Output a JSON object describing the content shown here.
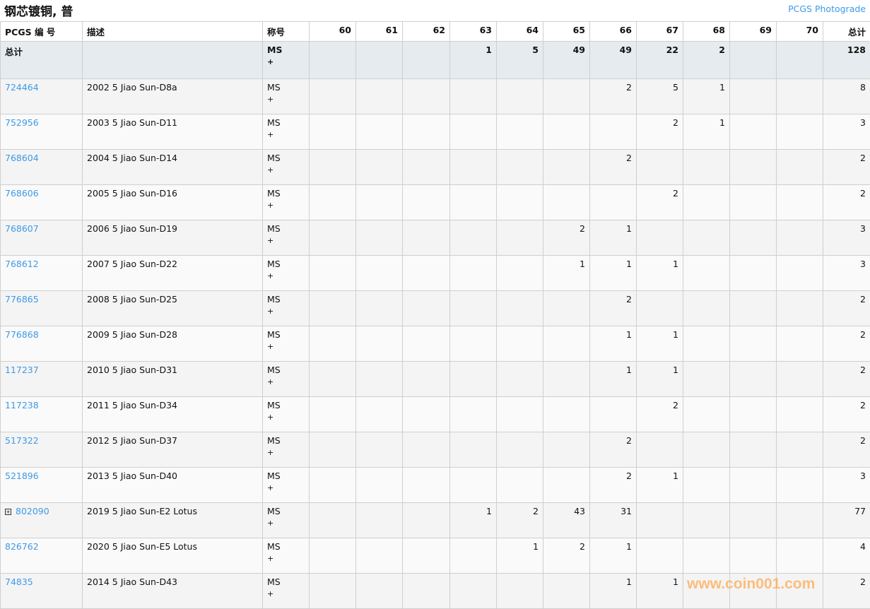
{
  "title": "钢芯镀铜, 普",
  "photograde_link": "PCGS Photograde",
  "headers": {
    "pcgs": "PCGS 编 号",
    "desc": "描述",
    "designation": "称号",
    "grades": [
      "60",
      "61",
      "62",
      "63",
      "64",
      "65",
      "66",
      "67",
      "68",
      "69",
      "70"
    ],
    "total": "总计"
  },
  "totals": {
    "label": "总计",
    "designation": "MS",
    "plus": "+",
    "counts": [
      "",
      "",
      "",
      "1",
      "5",
      "49",
      "49",
      "22",
      "2",
      "",
      ""
    ],
    "total": "128"
  },
  "rows": [
    {
      "pcgs": "724464",
      "desc": "2002 5 Jiao Sun-D8a",
      "designation": "MS",
      "plus": "+",
      "counts": [
        "",
        "",
        "",
        "",
        "",
        "",
        "2",
        "5",
        "1",
        "",
        ""
      ],
      "total": "8"
    },
    {
      "pcgs": "752956",
      "desc": "2003 5 Jiao Sun-D11",
      "designation": "MS",
      "plus": "+",
      "counts": [
        "",
        "",
        "",
        "",
        "",
        "",
        "",
        "2",
        "1",
        "",
        ""
      ],
      "total": "3"
    },
    {
      "pcgs": "768604",
      "desc": "2004 5 Jiao Sun-D14",
      "designation": "MS",
      "plus": "+",
      "counts": [
        "",
        "",
        "",
        "",
        "",
        "",
        "2",
        "",
        "",
        "",
        ""
      ],
      "total": "2"
    },
    {
      "pcgs": "768606",
      "desc": "2005 5 Jiao Sun-D16",
      "designation": "MS",
      "plus": "+",
      "counts": [
        "",
        "",
        "",
        "",
        "",
        "",
        "",
        "2",
        "",
        "",
        ""
      ],
      "total": "2"
    },
    {
      "pcgs": "768607",
      "desc": "2006 5 Jiao Sun-D19",
      "designation": "MS",
      "plus": "+",
      "counts": [
        "",
        "",
        "",
        "",
        "",
        "2",
        "1",
        "",
        "",
        "",
        ""
      ],
      "total": "3"
    },
    {
      "pcgs": "768612",
      "desc": "2007 5 Jiao Sun-D22",
      "designation": "MS",
      "plus": "+",
      "counts": [
        "",
        "",
        "",
        "",
        "",
        "1",
        "1",
        "1",
        "",
        "",
        ""
      ],
      "total": "3"
    },
    {
      "pcgs": "776865",
      "desc": "2008 5 Jiao Sun-D25",
      "designation": "MS",
      "plus": "+",
      "counts": [
        "",
        "",
        "",
        "",
        "",
        "",
        "2",
        "",
        "",
        "",
        ""
      ],
      "total": "2"
    },
    {
      "pcgs": "776868",
      "desc": "2009 5 Jiao Sun-D28",
      "designation": "MS",
      "plus": "+",
      "counts": [
        "",
        "",
        "",
        "",
        "",
        "",
        "1",
        "1",
        "",
        "",
        ""
      ],
      "total": "2"
    },
    {
      "pcgs": "117237",
      "desc": "2010 5 Jiao Sun-D31",
      "designation": "MS",
      "plus": "+",
      "counts": [
        "",
        "",
        "",
        "",
        "",
        "",
        "1",
        "1",
        "",
        "",
        ""
      ],
      "total": "2"
    },
    {
      "pcgs": "117238",
      "desc": "2011 5 Jiao Sun-D34",
      "designation": "MS",
      "plus": "+",
      "counts": [
        "",
        "",
        "",
        "",
        "",
        "",
        "",
        "2",
        "",
        "",
        ""
      ],
      "total": "2"
    },
    {
      "pcgs": "517322",
      "desc": "2012 5 Jiao Sun-D37",
      "designation": "MS",
      "plus": "+",
      "counts": [
        "",
        "",
        "",
        "",
        "",
        "",
        "2",
        "",
        "",
        "",
        ""
      ],
      "total": "2"
    },
    {
      "pcgs": "521896",
      "desc": "2013 5 Jiao Sun-D40",
      "designation": "MS",
      "plus": "+",
      "counts": [
        "",
        "",
        "",
        "",
        "",
        "",
        "2",
        "1",
        "",
        "",
        ""
      ],
      "total": "3"
    },
    {
      "pcgs": "802090",
      "expandable": true,
      "desc": "2019 5 Jiao Sun-E2 Lotus",
      "designation": "MS",
      "plus": "+",
      "counts": [
        "",
        "",
        "",
        "1",
        "2",
        "43",
        "31",
        "",
        "",
        "",
        ""
      ],
      "total": "77"
    },
    {
      "pcgs": "826762",
      "desc": "2020 5 Jiao Sun-E5 Lotus",
      "designation": "MS",
      "plus": "+",
      "counts": [
        "",
        "",
        "",
        "",
        "1",
        "2",
        "1",
        "",
        "",
        "",
        ""
      ],
      "total": "4"
    },
    {
      "pcgs": "74835",
      "desc": "2014 5 Jiao Sun-D43",
      "designation": "MS",
      "plus": "+",
      "counts": [
        "",
        "",
        "",
        "",
        "",
        "",
        "1",
        "1",
        "",
        "",
        ""
      ],
      "total": "2"
    }
  ],
  "watermark": "www.coin001.com"
}
